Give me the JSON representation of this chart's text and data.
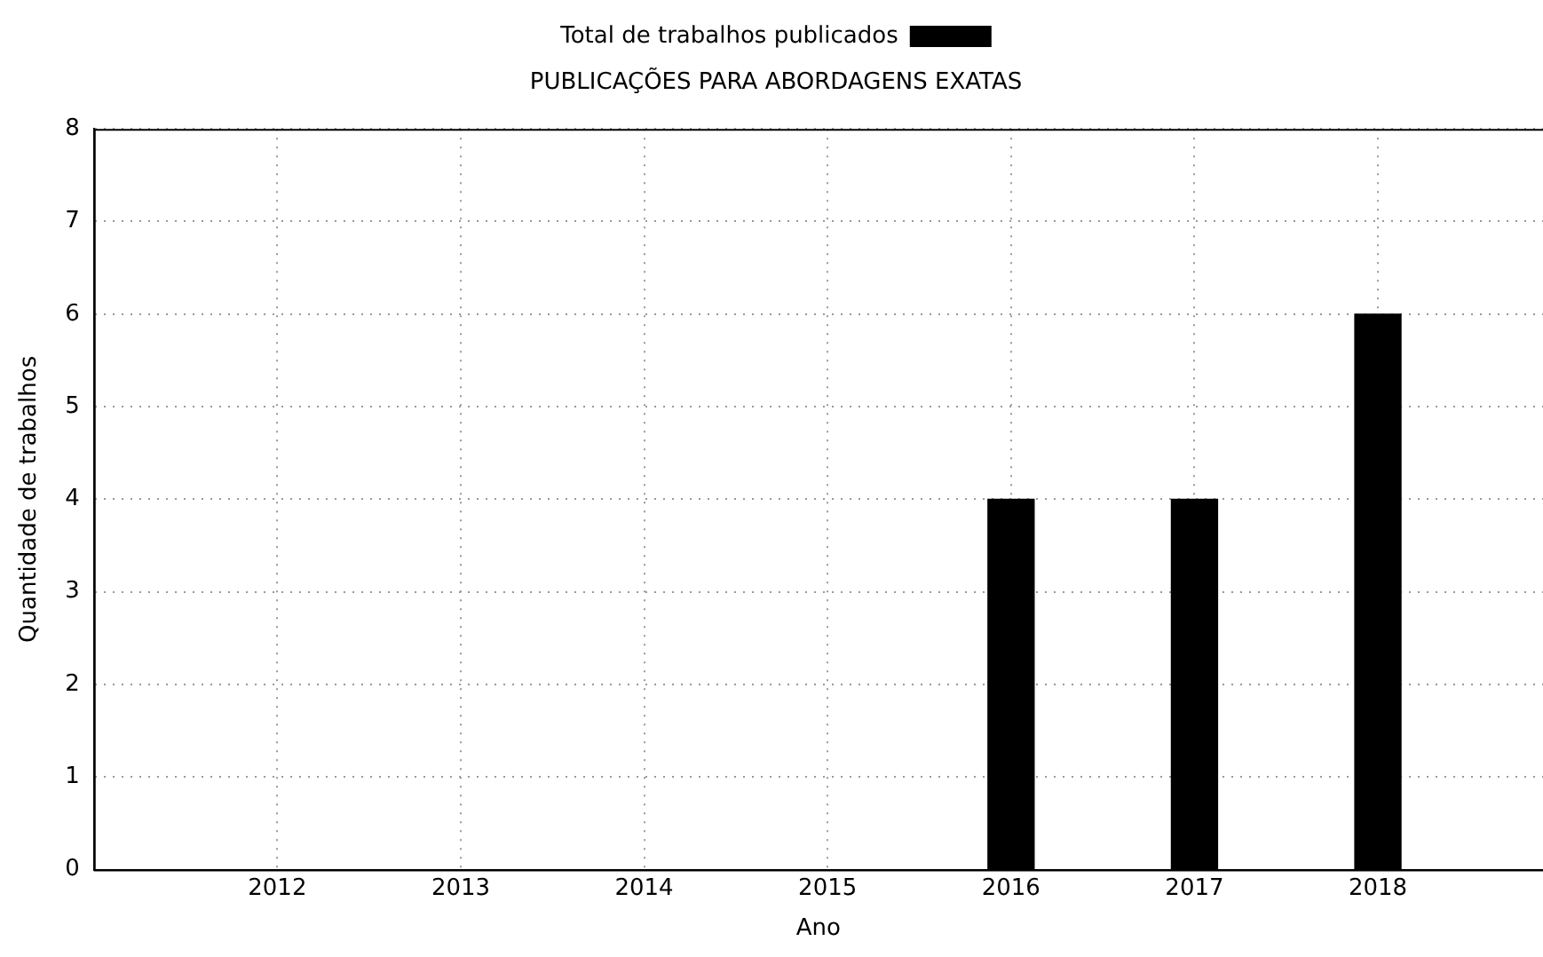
{
  "chart_data": {
    "type": "bar",
    "title": "PUBLICAÇÕES PARA ABORDAGENS EXATAS",
    "xlabel": "Ano",
    "ylabel": "Quantidade de trabalhos",
    "x": [
      2012,
      2013,
      2014,
      2015,
      2016,
      2017,
      2018
    ],
    "series": [
      {
        "name": "Total de trabalhos publicados",
        "color": "#000000",
        "values": [
          0,
          0,
          0,
          0,
          4,
          4,
          6
        ]
      }
    ],
    "xlim": [
      2011,
      2018.9
    ],
    "xticks": [
      2012,
      2013,
      2014,
      2015,
      2016,
      2017,
      2018
    ],
    "ylim": [
      0,
      8
    ],
    "yticks": [
      0,
      1,
      2,
      3,
      4,
      5,
      6,
      7,
      8
    ],
    "grid": true,
    "legend": "top"
  }
}
